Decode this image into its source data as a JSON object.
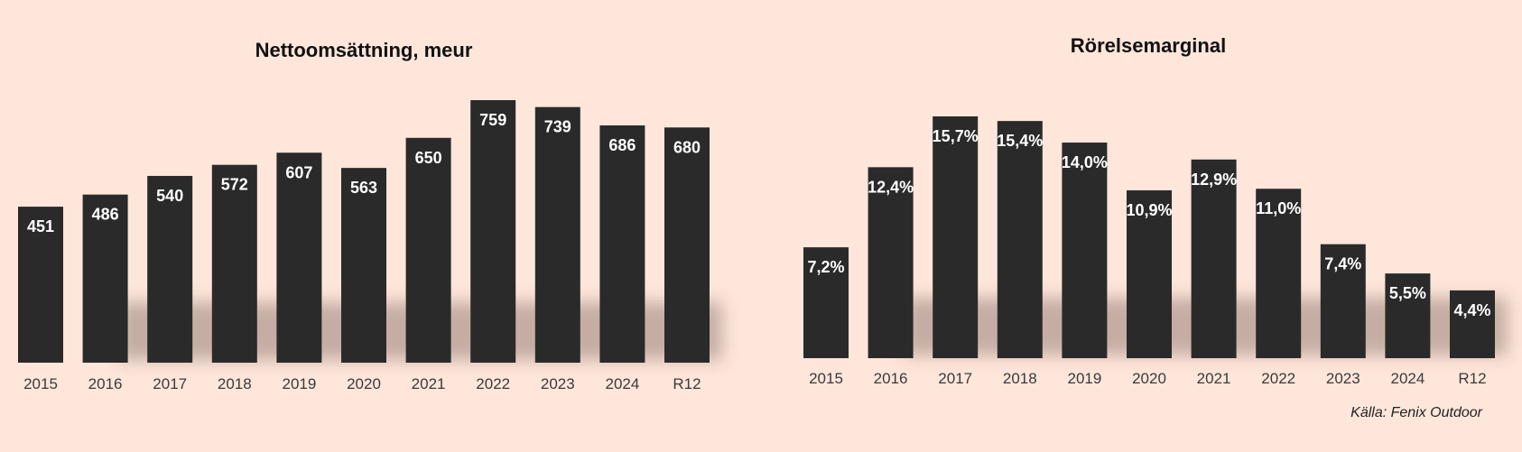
{
  "chart_data": [
    {
      "type": "bar",
      "title": "Nettoomsättning, meur",
      "categories": [
        "2015",
        "2016",
        "2017",
        "2018",
        "2019",
        "2020",
        "2021",
        "2022",
        "2023",
        "2024",
        "R12"
      ],
      "values": [
        451,
        486,
        540,
        572,
        607,
        563,
        650,
        759,
        739,
        686,
        680
      ],
      "value_labels": [
        "451",
        "486",
        "540",
        "572",
        "607",
        "563",
        "650",
        "759",
        "739",
        "686",
        "680"
      ],
      "xlabel": "",
      "ylabel": "",
      "ylim": [
        0,
        759
      ],
      "grid": false,
      "legend": "none",
      "bar_color": "#2b2a2a"
    },
    {
      "type": "bar",
      "title": "Rörelsemarginal",
      "categories": [
        "2015",
        "2016",
        "2017",
        "2018",
        "2019",
        "2020",
        "2021",
        "2022",
        "2023",
        "2024",
        "R12"
      ],
      "values": [
        7.2,
        12.4,
        15.7,
        15.4,
        14.0,
        10.9,
        12.9,
        11.0,
        7.4,
        5.5,
        4.4
      ],
      "value_labels": [
        "7,2%",
        "12,4%",
        "15,7%",
        "15,4%",
        "14,0%",
        "10,9%",
        "12,9%",
        "11,0%",
        "7,4%",
        "5,5%",
        "4,4%"
      ],
      "xlabel": "",
      "ylabel": "",
      "ylim": [
        0,
        15.7
      ],
      "grid": false,
      "legend": "none",
      "bar_color": "#2b2a2a"
    }
  ],
  "source_note": "Källa: Fenix Outdoor",
  "colors": {
    "background": "#fee6da",
    "bar": "#2b2a2a",
    "label": "#ffffff"
  }
}
